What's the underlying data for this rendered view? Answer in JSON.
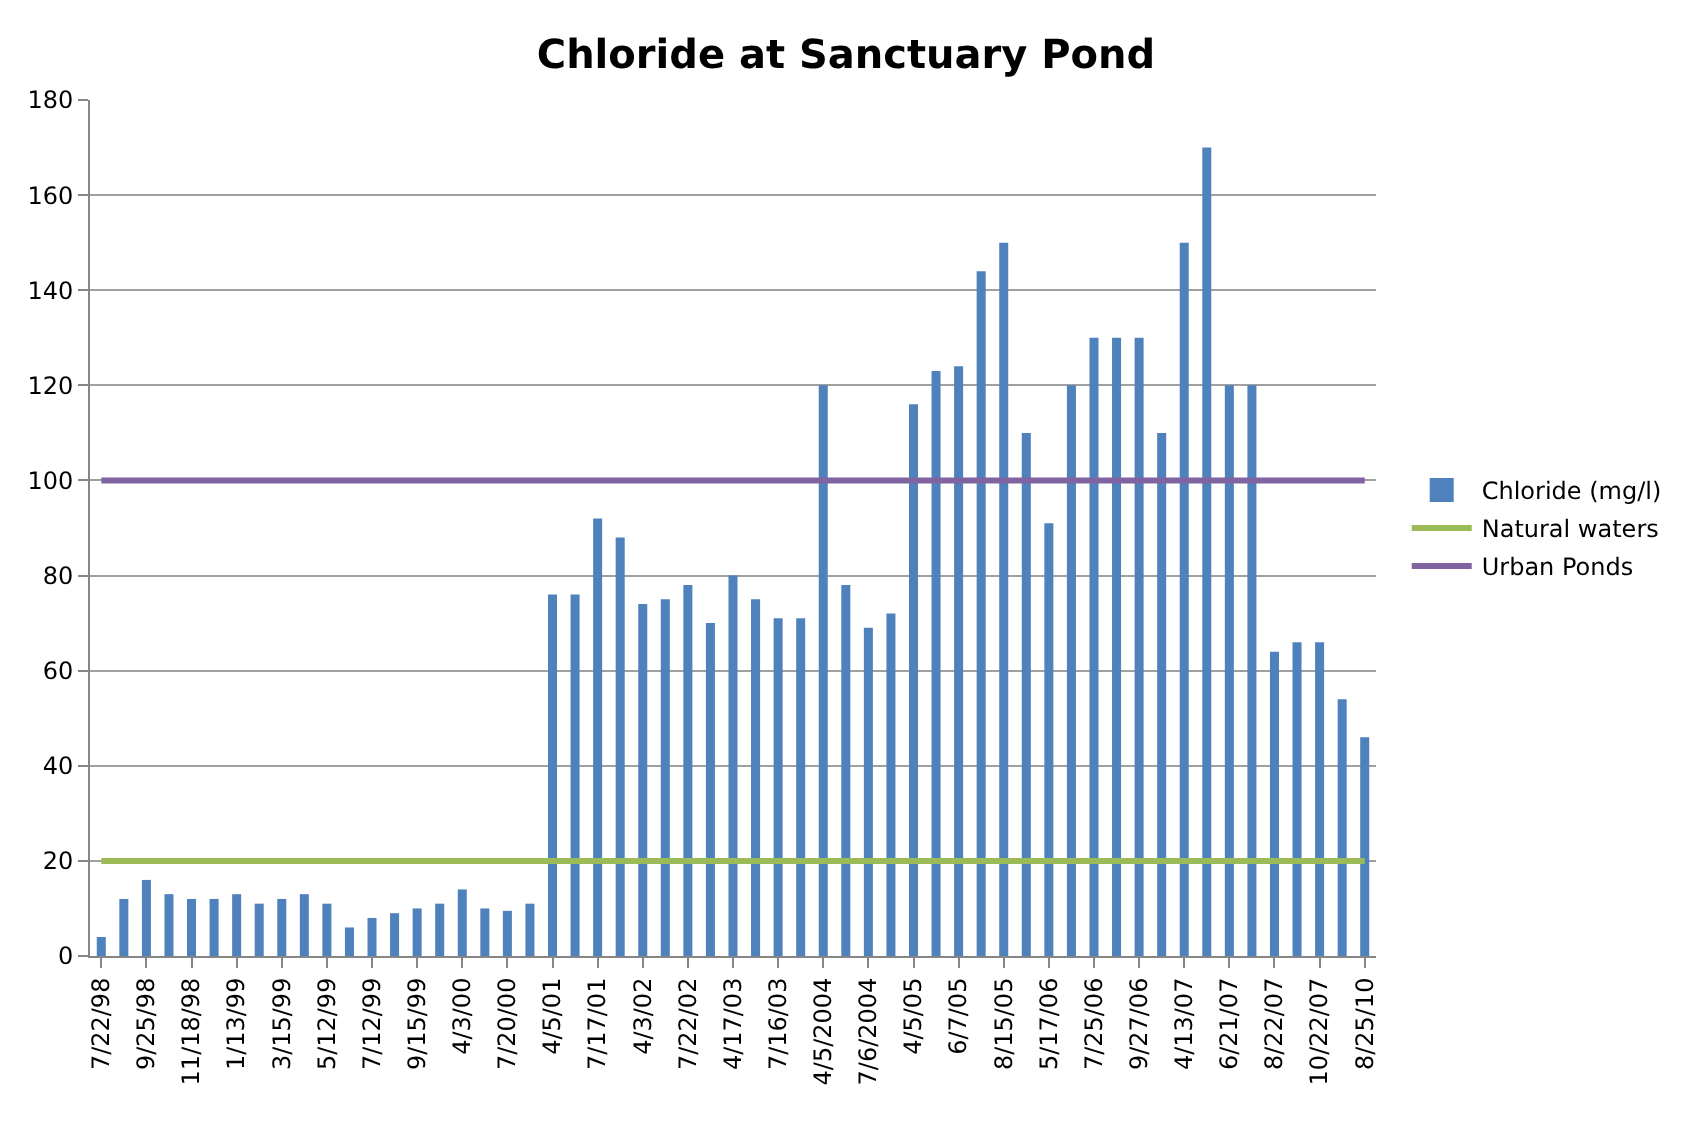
{
  "chart_data": {
    "type": "bar",
    "title": "Chloride at Sanctuary Pond",
    "categories": [
      "7/22/98",
      null,
      "9/25/98",
      null,
      "11/18/98",
      null,
      "1/13/99",
      null,
      "3/15/99",
      null,
      "5/12/99",
      null,
      "7/12/99",
      null,
      "9/15/99",
      null,
      "4/3/00",
      null,
      "7/20/00",
      null,
      "4/5/01",
      null,
      "7/17/01",
      null,
      "4/3/02",
      null,
      "7/22/02",
      null,
      "4/17/03",
      null,
      "7/16/03",
      null,
      "4/5/2004",
      null,
      "7/6/2004",
      null,
      "4/5/05",
      null,
      "6/7/05",
      null,
      "8/15/05",
      null,
      "5/17/06",
      null,
      "7/25/06",
      null,
      "9/27/06",
      null,
      "4/13/07",
      null,
      "6/21/07",
      null,
      "8/22/07",
      null,
      "10/22/07",
      null,
      "8/25/10"
    ],
    "series": [
      {
        "name": "Chloride (mg/l)",
        "color": "#4f81bd",
        "values": [
          4,
          12,
          16,
          13,
          12,
          12,
          13,
          11,
          12,
          13,
          11,
          6,
          8,
          9,
          10,
          11,
          14,
          10,
          9.5,
          11,
          76,
          76,
          92,
          88,
          74,
          75,
          78,
          70,
          80,
          75,
          71,
          71,
          120,
          78,
          69,
          72,
          116,
          123,
          124,
          144,
          150,
          110,
          91,
          120,
          130,
          130,
          130,
          110,
          150,
          170,
          120,
          120,
          64,
          66,
          66,
          54,
          46
        ]
      }
    ],
    "ref_lines": [
      {
        "axis": "y",
        "value": 20,
        "label": "Natural waters",
        "color": "#9bbb59"
      },
      {
        "axis": "y",
        "value": 100,
        "label": "Urban Ponds",
        "color": "#8064a2"
      }
    ],
    "ylim": [
      0,
      180
    ],
    "yticks": [
      0,
      20,
      40,
      60,
      80,
      100,
      120,
      140,
      160,
      180
    ],
    "grid": "y",
    "legend": "right"
  }
}
